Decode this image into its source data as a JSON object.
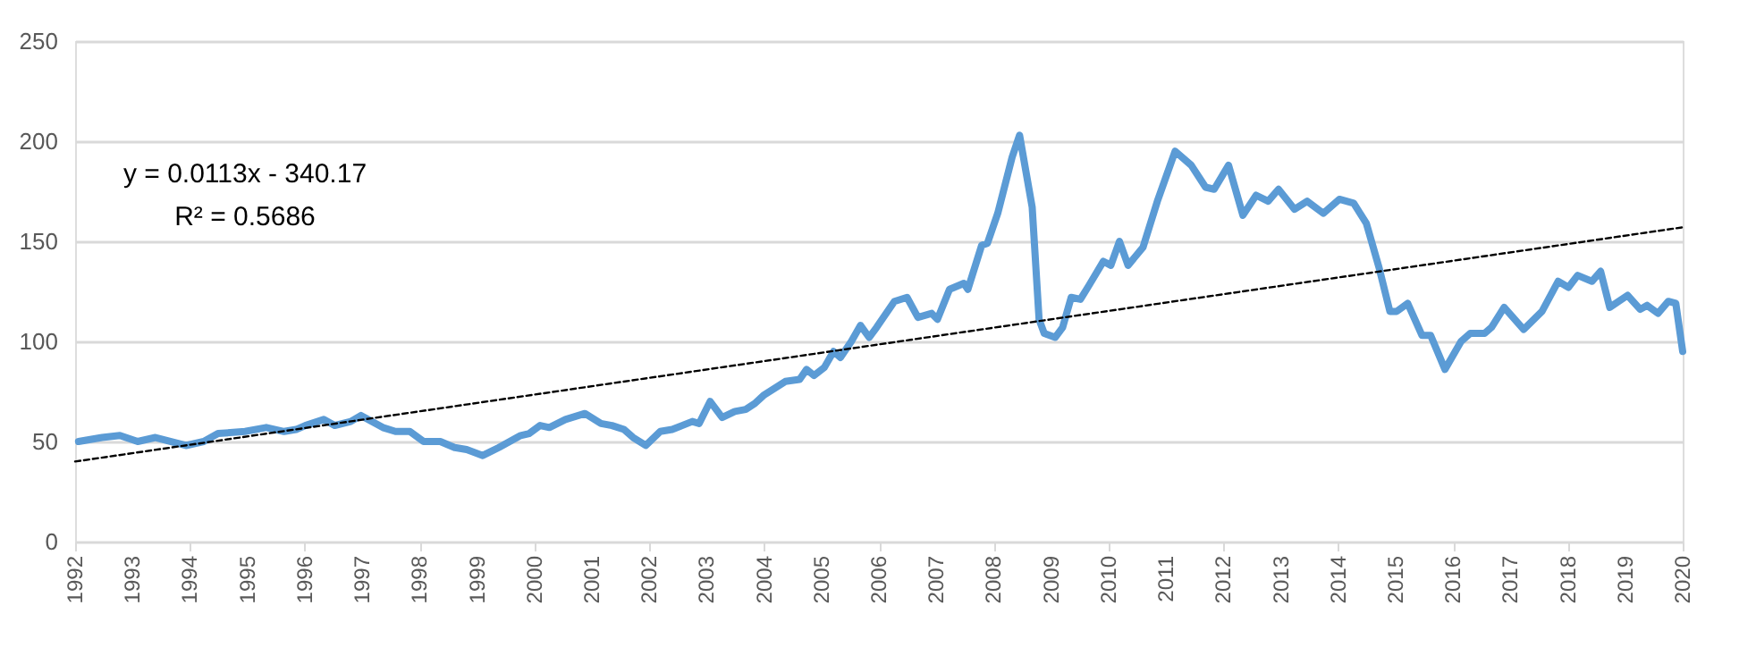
{
  "chart_data": {
    "type": "line",
    "xlim": [
      1992,
      2020
    ],
    "xticks": [
      1992,
      1993,
      1994,
      1995,
      1996,
      1997,
      1998,
      1999,
      2000,
      2001,
      2002,
      2003,
      2004,
      2005,
      2006,
      2007,
      2008,
      2009,
      2010,
      2011,
      2012,
      2013,
      2014,
      2015,
      2016,
      2017,
      2018,
      2019,
      2020
    ],
    "ylim": [
      0,
      250
    ],
    "yticks": [
      0,
      50,
      100,
      150,
      200,
      250
    ],
    "grid": "y",
    "legend": false,
    "marker": "none",
    "annotations": [
      "y = 0.0113x - 340.17",
      "R² = 0.5686"
    ],
    "series": [
      {
        "color": "#5b9bd5",
        "line_style": "solid",
        "x": [
          1992.06,
          1992.47,
          1992.78,
          1993.09,
          1993.4,
          1993.93,
          1994.24,
          1994.49,
          1994.96,
          1995.33,
          1995.64,
          1995.85,
          1996.01,
          1996.33,
          1996.52,
          1996.8,
          1996.98,
          1997.36,
          1997.58,
          1997.83,
          1998.07,
          1998.36,
          1998.61,
          1998.82,
          1999.1,
          1999.38,
          1999.76,
          1999.91,
          2000.1,
          2000.26,
          2000.54,
          2000.88,
          2001.16,
          2001.35,
          2001.56,
          2001.72,
          2001.94,
          2002.19,
          2002.4,
          2002.75,
          2002.87,
          2003.06,
          2003.27,
          2003.49,
          2003.68,
          2003.84,
          2003.99,
          2004.37,
          2004.62,
          2004.74,
          2004.87,
          2005.05,
          2005.21,
          2005.33,
          2005.52,
          2005.68,
          2005.83,
          2005.96,
          2006.27,
          2006.49,
          2006.68,
          2006.92,
          2007.02,
          2007.23,
          2007.48,
          2007.55,
          2007.79,
          2007.89,
          2008.07,
          2008.32,
          2008.45,
          2008.67,
          2008.79,
          2008.88,
          2009.07,
          2009.2,
          2009.35,
          2009.51,
          2009.66,
          2009.91,
          2010.04,
          2010.19,
          2010.34,
          2010.6,
          2010.85,
          2011.16,
          2011.44,
          2011.69,
          2011.84,
          2012.09,
          2012.34,
          2012.57,
          2012.78,
          2012.96,
          2013.24,
          2013.46,
          2013.74,
          2014.02,
          2014.27,
          2014.49,
          2014.71,
          2014.9,
          2015.02,
          2015.21,
          2015.46,
          2015.61,
          2015.86,
          2016.14,
          2016.3,
          2016.55,
          2016.67,
          2016.89,
          2017.23,
          2017.55,
          2017.83,
          2018.01,
          2018.17,
          2018.42,
          2018.57,
          2018.73,
          2019.04,
          2019.26,
          2019.38,
          2019.57,
          2019.75,
          2019.88,
          2020.0
        ],
        "values": [
          50,
          52,
          53,
          50,
          52,
          48,
          50,
          54,
          55,
          57,
          55,
          56,
          58,
          61,
          58,
          60,
          63,
          57,
          55,
          55,
          50,
          50,
          47,
          46,
          43,
          47,
          53,
          54,
          58,
          57,
          61,
          64,
          59,
          58,
          56,
          52,
          48,
          55,
          56,
          60,
          59,
          70,
          62,
          65,
          66,
          69,
          73,
          80,
          81,
          86,
          83,
          87,
          95,
          92,
          100,
          108,
          102,
          107,
          120,
          122,
          112,
          114,
          111,
          126,
          129,
          126,
          148,
          149,
          164,
          192,
          203,
          167,
          111,
          104,
          102,
          107,
          122,
          121,
          128,
          140,
          138,
          150,
          138,
          147,
          170,
          195,
          188,
          177,
          176,
          188,
          163,
          173,
          170,
          176,
          166,
          170,
          164,
          171,
          169,
          159,
          137,
          115,
          115,
          119,
          103,
          103,
          86,
          100,
          104,
          104,
          107,
          117,
          106,
          115,
          130,
          127,
          133,
          130,
          135,
          117,
          123,
          116,
          118,
          114,
          120,
          119,
          95
        ]
      },
      {
        "type": "line",
        "color": "#000000",
        "line_style": "dashed",
        "x": [
          1992,
          2020
        ],
        "values": [
          40,
          157
        ]
      }
    ]
  }
}
